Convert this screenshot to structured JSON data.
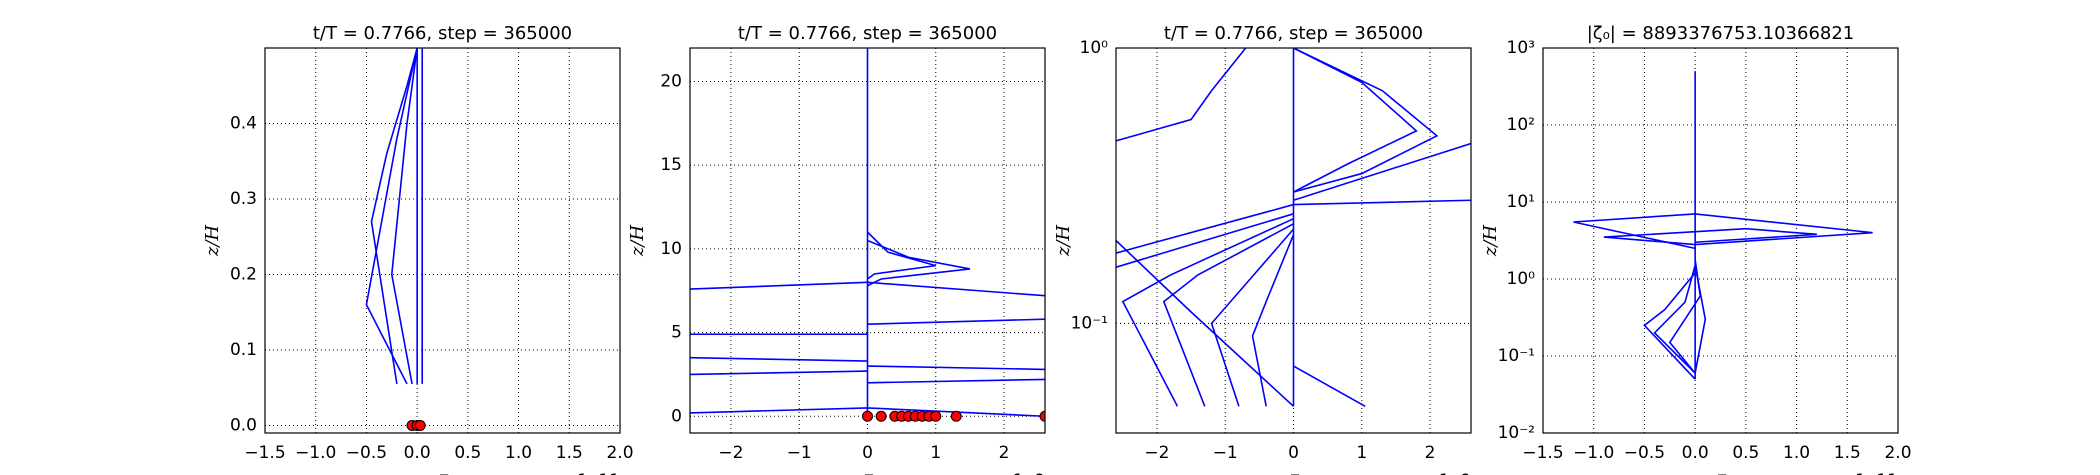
{
  "chart_data": [
    {
      "type": "line",
      "title": "t/T = 0.7766, step = 365000",
      "x_label": "ζ",
      "y_label": "z/H",
      "x_offset": "1e11",
      "xlim": [
        -150000000000.0,
        200000000000.0
      ],
      "xticks": [
        {
          "value": -150000000000.0,
          "label": "−1.5"
        },
        {
          "value": -100000000000.0,
          "label": "−1.0"
        },
        {
          "value": -50000000000.0,
          "label": "−0.5"
        },
        {
          "value": 0,
          "label": "0.0"
        },
        {
          "value": 50000000000.0,
          "label": "0.5"
        },
        {
          "value": 100000000000.0,
          "label": "1.0"
        },
        {
          "value": 150000000000.0,
          "label": "1.5"
        },
        {
          "value": 200000000000.0,
          "label": "2.0"
        }
      ],
      "ylim": [
        -0.01,
        0.5
      ],
      "yticks": [
        {
          "value": 0,
          "label": "0.0"
        },
        0.1,
        0.2,
        0.3,
        0.4
      ],
      "grid": true,
      "ylog": false,
      "series": [
        {
          "color": "#0000ff",
          "x": [
            0,
            0
          ],
          "values": [
            0.055,
            0.5
          ]
        },
        {
          "color": "#0000ff",
          "x": [
            5000000000.0,
            5000000000.0
          ],
          "values": [
            0.055,
            0.5
          ]
        },
        {
          "color": "#0000ff",
          "x": [
            -20000000000.0,
            -45000000000.0,
            -30000000000.0,
            -10000000000.0,
            0
          ],
          "values": [
            0.055,
            0.27,
            0.36,
            0.45,
            0.5
          ]
        },
        {
          "color": "#0000ff",
          "x": [
            -10000000000.0,
            -50000000000.0,
            -20000000000.0,
            0
          ],
          "values": [
            0.055,
            0.16,
            0.38,
            0.5
          ]
        },
        {
          "color": "#0000ff",
          "x": [
            -5000000000.0,
            -25000000000.0,
            -10000000000.0,
            0
          ],
          "values": [
            0.055,
            0.2,
            0.4,
            0.5
          ]
        },
        {
          "type": "scatter",
          "color": "#ff0000",
          "x": [
            -5000000000.0,
            0,
            3000000000.0
          ],
          "values": [
            0,
            0,
            0
          ]
        }
      ]
    },
    {
      "type": "line",
      "title": "t/T = 0.7766, step = 365000",
      "x_label": "ζ",
      "y_label": "z/H",
      "x_offset": "1e9",
      "xlim": [
        -2600000000.0,
        2600000000.0
      ],
      "xticks": [
        {
          "value": -2000000000.0,
          "label": "−2"
        },
        {
          "value": -1000000000.0,
          "label": "−1"
        },
        {
          "value": 0,
          "label": "0"
        },
        {
          "value": 1000000000.0,
          "label": "1"
        },
        {
          "value": 2000000000.0,
          "label": "2"
        }
      ],
      "ylim": [
        -1,
        22
      ],
      "yticks": [
        0,
        5,
        10,
        15,
        20
      ],
      "grid": true,
      "ylog": false,
      "series": [
        {
          "color": "#0000ff",
          "x": [
            0,
            0,
            0
          ],
          "values": [
            -0.2,
            10,
            22
          ]
        },
        {
          "color": "#0000ff",
          "x": [
            0,
            200000000.0,
            1500000000.0,
            600000000.0,
            0
          ],
          "values": [
            7.8,
            8.2,
            8.8,
            9.5,
            10.5
          ]
        },
        {
          "color": "#0000ff",
          "x": [
            0,
            100000000.0,
            1000000000.0,
            300000000.0,
            0
          ],
          "values": [
            8.2,
            8.5,
            9,
            9.8,
            11
          ]
        },
        {
          "color": "#0000ff",
          "x": [
            -2600000000.0,
            0
          ],
          "values": [
            7.6,
            8
          ]
        },
        {
          "color": "#0000ff",
          "x": [
            -2600000000.0,
            0
          ],
          "values": [
            4.9,
            4.9
          ]
        },
        {
          "color": "#0000ff",
          "x": [
            -2600000000.0,
            0
          ],
          "values": [
            3.5,
            3.3
          ]
        },
        {
          "color": "#0000ff",
          "x": [
            -2600000000.0,
            0
          ],
          "values": [
            2.5,
            2.7
          ]
        },
        {
          "color": "#0000ff",
          "x": [
            0,
            2600000000.0
          ],
          "values": [
            5.5,
            5.8
          ]
        },
        {
          "color": "#0000ff",
          "x": [
            0,
            2600000000.0
          ],
          "values": [
            3,
            2.8
          ]
        },
        {
          "color": "#0000ff",
          "x": [
            0,
            2600000000.0
          ],
          "values": [
            2,
            2.2
          ]
        },
        {
          "color": "#0000ff",
          "x": [
            -2600000000.0,
            0,
            2600000000.0
          ],
          "values": [
            0.2,
            0.5,
            0
          ]
        },
        {
          "color": "#0000ff",
          "x": [
            0,
            2600000000.0
          ],
          "values": [
            8,
            7.2
          ]
        },
        {
          "type": "scatter",
          "color": "#ff0000",
          "x": [
            0,
            200000000.0,
            400000000.0,
            500000000.0,
            600000000.0,
            700000000.0,
            800000000.0,
            900000000.0,
            1000000000.0,
            1300000000.0,
            2600000000.0
          ],
          "values": [
            0,
            0,
            0,
            0,
            0,
            0,
            0,
            0,
            0,
            0,
            0
          ]
        }
      ]
    },
    {
      "type": "line",
      "title": "t/T = 0.7766, step = 365000",
      "x_label": "ζ",
      "y_label": "z/H",
      "x_offset": "1e9",
      "xlim": [
        -2600000000.0,
        2600000000.0
      ],
      "xticks": [
        {
          "value": -2000000000.0,
          "label": "−2"
        },
        {
          "value": -1000000000.0,
          "label": "−1"
        },
        {
          "value": 0,
          "label": "0"
        },
        {
          "value": 1000000000.0,
          "label": "1"
        },
        {
          "value": 2000000000.0,
          "label": "2"
        }
      ],
      "ylim": [
        0.04,
        1
      ],
      "yticks": [
        {
          "value": 0.1,
          "label": "10⁻¹"
        },
        {
          "value": 1,
          "label": "10⁰"
        }
      ],
      "grid": true,
      "ylog": true,
      "series": [
        {
          "color": "#0000ff",
          "x": [
            0,
            0
          ],
          "values": [
            0.05,
            1
          ]
        },
        {
          "color": "#0000ff",
          "x": [
            -2600000000.0,
            -1500000000.0,
            -1200000000.0,
            -700000000.0
          ],
          "values": [
            0.46,
            0.55,
            0.7,
            1
          ]
        },
        {
          "color": "#0000ff",
          "x": [
            -2600000000.0,
            0,
            2600000000.0
          ],
          "values": [
            0.18,
            0.27,
            0.28
          ]
        },
        {
          "color": "#0000ff",
          "x": [
            -2600000000.0,
            0
          ],
          "values": [
            0.16,
            0.25
          ]
        },
        {
          "color": "#0000ff",
          "x": [
            -1700000000.0,
            -2500000000.0,
            -1800000000.0,
            0
          ],
          "values": [
            0.05,
            0.12,
            0.15,
            0.24
          ]
        },
        {
          "color": "#0000ff",
          "x": [
            -1300000000.0,
            -1900000000.0,
            -1400000000.0,
            0
          ],
          "values": [
            0.05,
            0.12,
            0.15,
            0.23
          ]
        },
        {
          "color": "#0000ff",
          "x": [
            -800000000.0,
            -1200000000.0,
            -800000000.0,
            0
          ],
          "values": [
            0.05,
            0.1,
            0.13,
            0.22
          ]
        },
        {
          "color": "#0000ff",
          "x": [
            -400000000.0,
            -600000000.0,
            -400000000.0,
            0
          ],
          "values": [
            0.05,
            0.09,
            0.12,
            0.21
          ]
        },
        {
          "color": "#0000ff",
          "x": [
            0,
            1000000000.0,
            2100000000.0,
            1300000000.0,
            0
          ],
          "values": [
            0.3,
            0.35,
            0.48,
            0.7,
            1
          ]
        },
        {
          "color": "#0000ff",
          "x": [
            0,
            800000000.0,
            1800000000.0,
            1000000000.0,
            0
          ],
          "values": [
            0.3,
            0.38,
            0.5,
            0.75,
            1
          ]
        },
        {
          "color": "#0000ff",
          "x": [
            0,
            2600000000.0
          ],
          "values": [
            0.28,
            0.45
          ]
        },
        {
          "color": "#0000ff",
          "x": [
            0,
            1050000000.0
          ],
          "values": [
            0.07,
            0.05
          ]
        },
        {
          "color": "#0000ff",
          "x": [
            -2600000000.0,
            -1500000000.0,
            0
          ],
          "values": [
            0.2,
            0.11,
            0.05
          ]
        }
      ]
    },
    {
      "type": "line",
      "title": "|ζ₀| = 8893376753.10366821",
      "x_label": "ζ",
      "y_label": "z/H",
      "x_offset": "1e11",
      "xlim": [
        -150000000000.0,
        200000000000.0
      ],
      "xticks": [
        {
          "value": -150000000000.0,
          "label": "−1.5"
        },
        {
          "value": -100000000000.0,
          "label": "−1.0"
        },
        {
          "value": -50000000000.0,
          "label": "−0.5"
        },
        {
          "value": 0,
          "label": "0.0"
        },
        {
          "value": 50000000000.0,
          "label": "0.5"
        },
        {
          "value": 100000000000.0,
          "label": "1.0"
        },
        {
          "value": 150000000000.0,
          "label": "1.5"
        },
        {
          "value": 200000000000.0,
          "label": "2.0"
        }
      ],
      "ylim": [
        0.01,
        1000
      ],
      "yticks": [
        {
          "value": 0.01,
          "label": "10⁻²"
        },
        {
          "value": 0.1,
          "label": "10⁻¹"
        },
        {
          "value": 1,
          "label": "10⁰"
        },
        {
          "value": 10,
          "label": "10¹"
        },
        {
          "value": 100,
          "label": "10²"
        },
        {
          "value": 1000,
          "label": "10³"
        }
      ],
      "grid": true,
      "ylog": true,
      "series": [
        {
          "color": "#0000ff",
          "x": [
            0,
            0
          ],
          "values": [
            0.05,
            500
          ]
        },
        {
          "color": "#0000ff",
          "x": [
            0,
            -120000000000.0,
            0,
            175000000000.0,
            0
          ],
          "values": [
            2.5,
            5.5,
            7,
            4,
            2.8
          ]
        },
        {
          "color": "#0000ff",
          "x": [
            0,
            -90000000000.0,
            50000000000.0,
            120000000000.0,
            0
          ],
          "values": [
            2.8,
            3.5,
            4.5,
            3.8,
            3
          ]
        },
        {
          "color": "#0000ff",
          "x": [
            0,
            -50000000000.0,
            -30000000000.0,
            0
          ],
          "values": [
            0.05,
            0.25,
            0.4,
            1.2
          ]
        },
        {
          "color": "#0000ff",
          "x": [
            0,
            -40000000000.0,
            -10000000000.0,
            0
          ],
          "values": [
            0.06,
            0.2,
            0.5,
            1.5
          ]
        },
        {
          "color": "#0000ff",
          "x": [
            0,
            -25000000000.0,
            5000000000.0,
            0
          ],
          "values": [
            0.06,
            0.15,
            0.6,
            1.8
          ]
        },
        {
          "color": "#0000ff",
          "x": [
            0,
            10000000000.0,
            0
          ],
          "values": [
            0.06,
            0.3,
            1.5
          ]
        }
      ]
    }
  ]
}
